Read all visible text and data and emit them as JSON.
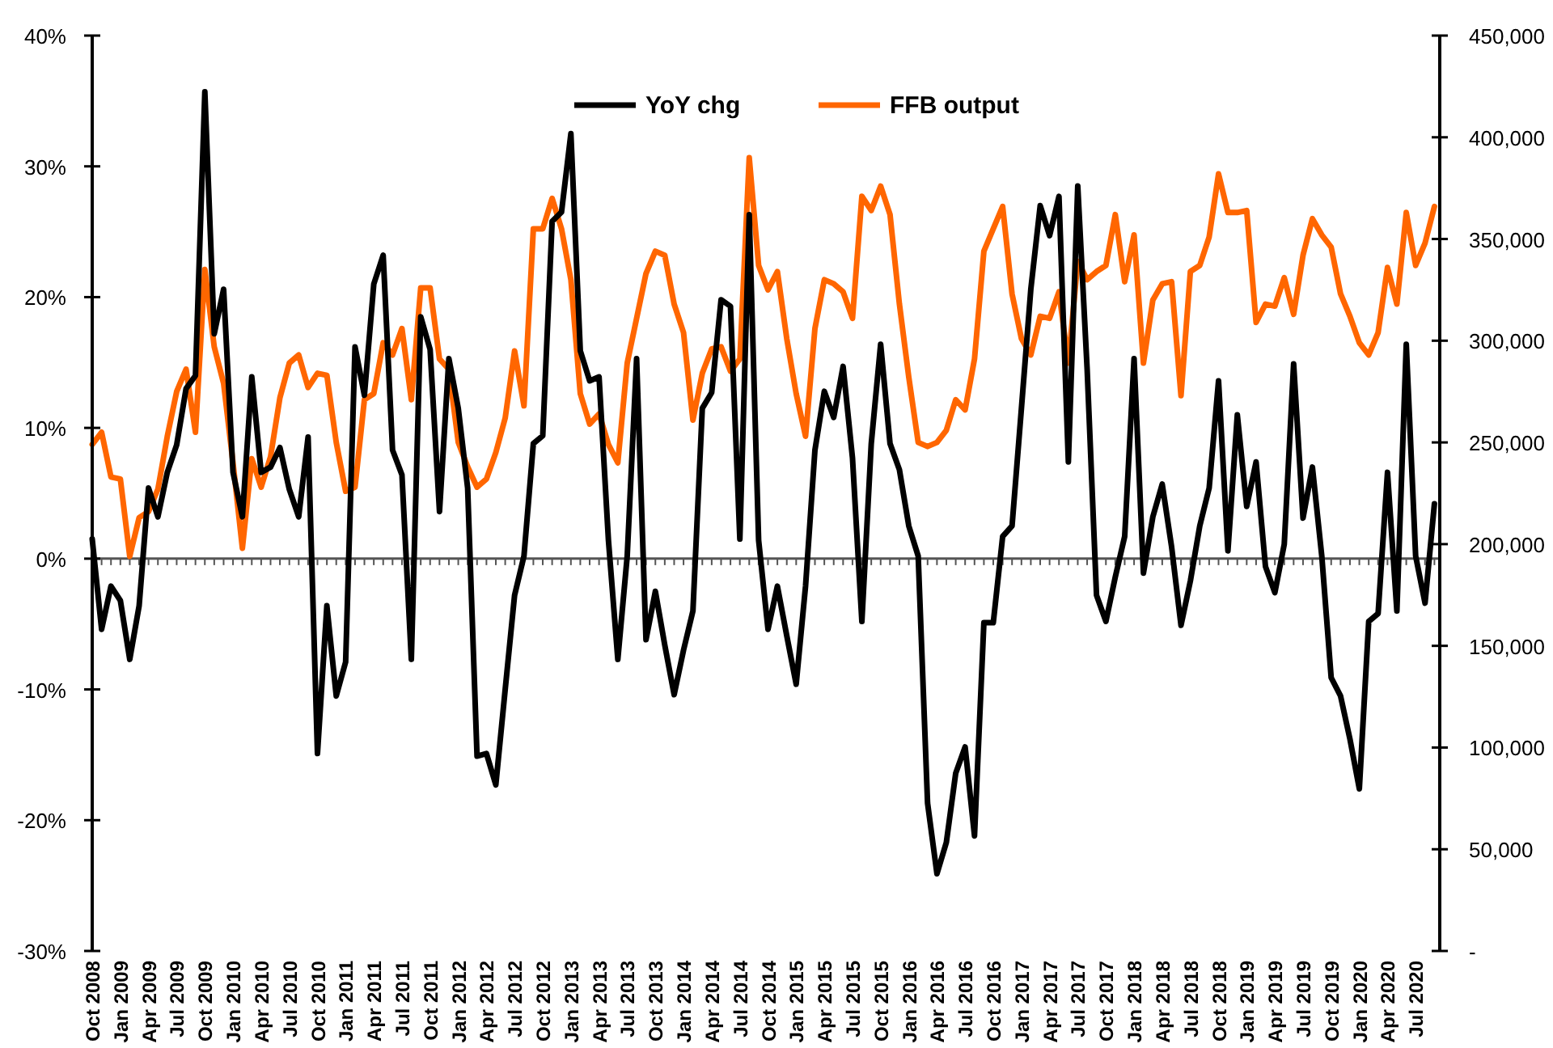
{
  "chart_data": {
    "type": "line",
    "categories": [
      "Oct 2008",
      null,
      null,
      "Jan 2009",
      null,
      null,
      "Apr 2009",
      null,
      null,
      "Jul 2009",
      null,
      null,
      "Oct 2009",
      null,
      null,
      "Jan 2010",
      null,
      null,
      "Apr 2010",
      null,
      null,
      "Jul 2010",
      null,
      null,
      "Oct 2010",
      null,
      null,
      "Jan 2011",
      null,
      null,
      "Apr 2011",
      null,
      null,
      "Jul 2011",
      null,
      null,
      "Oct 2011",
      null,
      null,
      "Jan 2012",
      null,
      null,
      "Apr 2012",
      null,
      null,
      "Jul 2012",
      null,
      null,
      "Oct 2012",
      null,
      null,
      "Jan 2013",
      null,
      null,
      "Apr 2013",
      null,
      null,
      "Jul 2013",
      null,
      null,
      "Oct 2013",
      null,
      null,
      "Jan 2014",
      null,
      null,
      "Apr 2014",
      null,
      null,
      "Jul 2014",
      null,
      null,
      "Oct 2014",
      null,
      null,
      "Jan 2015",
      null,
      null,
      "Apr 2015",
      null,
      null,
      "Jul 2015",
      null,
      null,
      "Oct 2015",
      null,
      null,
      "Jan 2016",
      null,
      null,
      "Apr 2016",
      null,
      null,
      "Jul 2016",
      null,
      null,
      "Oct 2016",
      null,
      null,
      "Jan 2017",
      null,
      null,
      "Apr 2017",
      null,
      null,
      "Jul 2017",
      null,
      null,
      "Oct 2017",
      null,
      null,
      "Jan 2018",
      null,
      null,
      "Apr 2018",
      null,
      null,
      "Jul 2018",
      null,
      null,
      "Oct 2018",
      null,
      null,
      "Jan 2019",
      null,
      null,
      "Apr 2019",
      null,
      null,
      "Jul 2019",
      null,
      null,
      "Oct 2019",
      null,
      null,
      "Jan 2020",
      null,
      null,
      "Apr 2020",
      null,
      null,
      "Jul 2020",
      null,
      null
    ],
    "series": [
      {
        "name": "YoY chg",
        "color": "#000000",
        "axis": "y",
        "values": [
          1.5,
          -5.4,
          -2.1,
          -3.2,
          -7.7,
          -3.6,
          5.4,
          3.2,
          6.6,
          8.7,
          13,
          14,
          35.7,
          17.2,
          20.6,
          6.6,
          3.2,
          13.9,
          6.6,
          7,
          8.5,
          5.3,
          3.2,
          9.3,
          -14.9,
          -3.6,
          -10.5,
          -7.9,
          16.2,
          12.5,
          21,
          23.2,
          8.3,
          6.4,
          -7.7,
          18.5,
          16,
          3.6,
          15.3,
          11.5,
          5.4,
          -15.1,
          -14.9,
          -17.3,
          -10,
          -2.8,
          0.2,
          8.8,
          9.4,
          25.8,
          26.5,
          32.5,
          15.9,
          13.6,
          13.9,
          1.4,
          -7.7,
          0.2,
          15.3,
          -6.2,
          -2.5,
          -6.6,
          -10.4,
          -7,
          -4,
          11.5,
          12.7,
          19.8,
          19.3,
          1.5,
          26.3,
          1.4,
          -5.4,
          -2.1,
          -5.9,
          -9.6,
          -2.1,
          8.3,
          12.8,
          10.8,
          14.7,
          7.7,
          -4.8,
          8.8,
          16.4,
          8.8,
          6.8,
          2.5,
          0.2,
          -18.7,
          -24.1,
          -21.7,
          -16.4,
          -14.4,
          -21.2,
          -4.9,
          -4.9,
          1.7,
          2.5,
          11.5,
          20.6,
          27,
          24.7,
          27.7,
          7.4,
          28.5,
          14.5,
          -2.8,
          -4.8,
          -1.4,
          1.7,
          15.3,
          -1.1,
          3.2,
          5.7,
          0.9,
          -5.1,
          -1.7,
          2.5,
          5.4,
          13.6,
          0.6,
          11,
          4,
          7.4,
          -0.6,
          -2.6,
          1.1,
          14.9,
          3.1,
          7,
          0.2,
          -9.1,
          -10.5,
          -13.8,
          -17.6,
          -4.8,
          -4.2,
          6.6,
          -4,
          16.4,
          0.2,
          -3.4,
          4.2
        ]
      },
      {
        "name": "FFB output",
        "color": "#ff6600",
        "axis": "y2",
        "values": [
          249000,
          255000,
          233000,
          232000,
          194000,
          213000,
          216000,
          227000,
          253000,
          275000,
          286000,
          255000,
          335000,
          297000,
          279000,
          240000,
          198000,
          242000,
          228000,
          243000,
          272000,
          289000,
          293000,
          277000,
          284000,
          283000,
          250000,
          226000,
          228000,
          271000,
          274000,
          299000,
          293000,
          306000,
          271000,
          326000,
          326000,
          291000,
          286000,
          250000,
          238000,
          228000,
          232000,
          245000,
          262000,
          295000,
          268000,
          355000,
          355000,
          370000,
          355000,
          330000,
          274000,
          259000,
          264000,
          249000,
          240000,
          289000,
          311000,
          333000,
          344000,
          342000,
          318000,
          304000,
          261000,
          284000,
          296000,
          297000,
          285000,
          291000,
          390000,
          337000,
          325000,
          334000,
          301000,
          274000,
          253000,
          306000,
          330000,
          328000,
          324000,
          311000,
          371000,
          364000,
          376000,
          362000,
          318000,
          282000,
          250000,
          248000,
          250000,
          256000,
          271000,
          266000,
          291000,
          344000,
          355000,
          366000,
          323000,
          301000,
          293000,
          312000,
          311000,
          324000,
          289000,
          339000,
          330000,
          334000,
          337000,
          362000,
          329000,
          352000,
          289000,
          320000,
          328000,
          329000,
          273000,
          334000,
          337000,
          351000,
          382000,
          363000,
          363000,
          364000,
          309000,
          318000,
          317000,
          331000,
          313000,
          342000,
          360000,
          352000,
          346000,
          323000,
          312000,
          299000,
          293000,
          304000,
          336000,
          318000,
          363000,
          337000,
          348000,
          366000
        ]
      }
    ],
    "ylim": [
      -30,
      40
    ],
    "yticks": [
      {
        "value": -30,
        "label": "-30%"
      },
      {
        "value": -20,
        "label": "-20%"
      },
      {
        "value": -10,
        "label": "-10%"
      },
      {
        "value": 0,
        "label": "0%"
      },
      {
        "value": 10,
        "label": "10%"
      },
      {
        "value": 20,
        "label": "20%"
      },
      {
        "value": 30,
        "label": "30%"
      },
      {
        "value": 40,
        "label": "40%"
      }
    ],
    "y2lim": [
      0,
      450000
    ],
    "y2ticks": [
      {
        "value": 0,
        "label": "-"
      },
      {
        "value": 50000,
        "label": "50,000"
      },
      {
        "value": 100000,
        "label": "100,000"
      },
      {
        "value": 150000,
        "label": "150,000"
      },
      {
        "value": 200000,
        "label": "200,000"
      },
      {
        "value": 250000,
        "label": "250,000"
      },
      {
        "value": 300000,
        "label": "300,000"
      },
      {
        "value": 350000,
        "label": "350,000"
      },
      {
        "value": 400000,
        "label": "400,000"
      },
      {
        "value": 450000,
        "label": "450,000"
      }
    ],
    "legend": "top"
  }
}
